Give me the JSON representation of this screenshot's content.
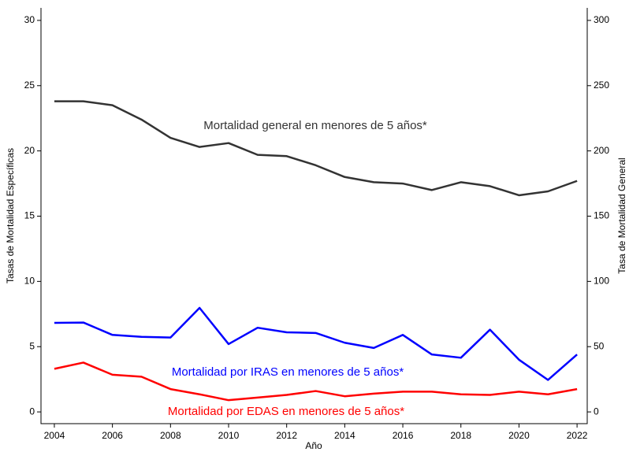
{
  "chart_data": {
    "type": "line",
    "x_label": "Año",
    "y_label": "Tasas de Mortalidad Específicas",
    "y2_label": "Tasa de Mortalidad General",
    "x": [
      2004,
      2005,
      2006,
      2007,
      2008,
      2009,
      2010,
      2011,
      2012,
      2013,
      2014,
      2015,
      2016,
      2017,
      2018,
      2019,
      2020,
      2021,
      2022
    ],
    "series": [
      {
        "name": "Mortalidad general en menores de 5 años*",
        "color": "#333333",
        "axis": "y2",
        "values": [
          238,
          238,
          235,
          224,
          210,
          203,
          206,
          197,
          196,
          189,
          180,
          176,
          175,
          170,
          176,
          173,
          166,
          169,
          177
        ]
      },
      {
        "name": "Mortalidad por IRAS en menores de 5 años*",
        "color": "#0000ff",
        "values": [
          6.82,
          6.85,
          5.9,
          5.75,
          5.7,
          7.97,
          5.2,
          6.45,
          6.1,
          6.05,
          5.3,
          4.9,
          5.9,
          4.4,
          4.15,
          6.3,
          4.0,
          2.45,
          4.4
        ]
      },
      {
        "name": "Mortalidad por EDAS en menores de 5 años*",
        "color": "#ff0000",
        "values": [
          3.3,
          3.78,
          2.85,
          2.7,
          1.75,
          1.35,
          0.9,
          1.1,
          1.3,
          1.6,
          1.2,
          1.4,
          1.55,
          1.55,
          1.35,
          1.3,
          1.55,
          1.35,
          1.75
        ]
      }
    ],
    "xlim": [
      2003.54,
      2022.35
    ],
    "xticks": [
      2004,
      2006,
      2008,
      2010,
      2012,
      2014,
      2016,
      2018,
      2020,
      2022
    ],
    "ylim": [
      -0.9,
      30.96
    ],
    "yticks": [
      0,
      5,
      10,
      15,
      20,
      25,
      30
    ],
    "y2lim": [
      -9,
      309.6
    ],
    "y2ticks": [
      0,
      50,
      100,
      150,
      200,
      250,
      300
    ]
  }
}
